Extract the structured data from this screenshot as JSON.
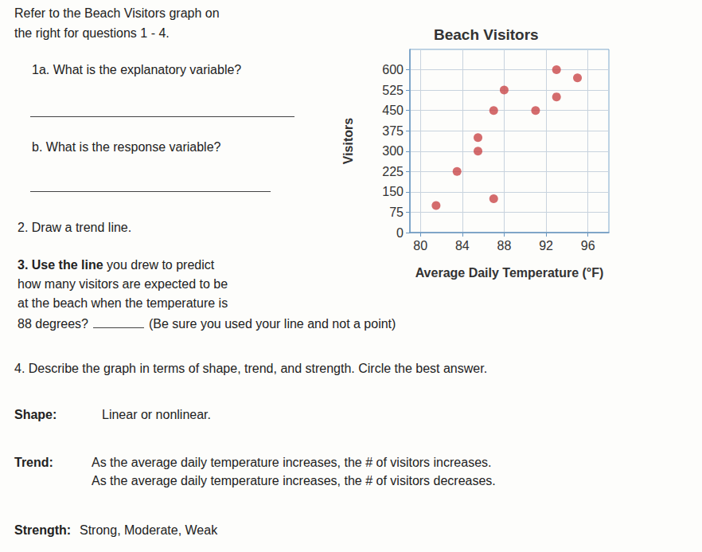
{
  "document": {
    "intro": [
      "Refer to the Beach Visitors graph on",
      "the right for questions 1 - 4."
    ],
    "q1a": "1a. What is the explanatory variable?",
    "q1b": "b. What is the response variable?",
    "q2": "2. Draw a trend line.",
    "q3": {
      "lead": "3. Use the line",
      "lines": [
        "you drew to predict",
        "how many visitors are expected to be",
        "at the beach when the temperature is"
      ],
      "prompt": "88 degrees?",
      "note": "(Be sure you used your line and not a point)"
    },
    "q4": {
      "text": "4. Describe the graph in terms of shape, trend, and strength. Circle the best answer.",
      "items": [
        {
          "label": "Shape:",
          "options": [
            "Linear or nonlinear."
          ]
        },
        {
          "label": "Trend:",
          "options": [
            "As the average daily temperature increases, the # of visitors increases.",
            "As the average daily temperature increases, the # of visitors decreases."
          ]
        },
        {
          "label": "Strength:",
          "options": [
            "Strong, Moderate, Weak"
          ]
        }
      ]
    }
  },
  "chart_data": {
    "type": "scatter",
    "title": "Beach Visitors",
    "x_label": "Average Daily Temperature (°F)",
    "y_label": "Visitors",
    "x": [
      81.5,
      83.5,
      85.5,
      85.5,
      87,
      87,
      88,
      91,
      93,
      93,
      95
    ],
    "values": [
      100,
      225,
      300,
      350,
      125,
      450,
      525,
      450,
      600,
      500,
      570
    ],
    "color": "#c9474a",
    "marker": "circle",
    "xlim": [
      79,
      98
    ],
    "xticks": [
      80,
      84,
      88,
      92,
      96
    ],
    "ylim": [
      0,
      675
    ],
    "yticks": [
      0,
      75,
      150,
      225,
      300,
      375,
      450,
      525,
      600
    ],
    "grid": true
  }
}
